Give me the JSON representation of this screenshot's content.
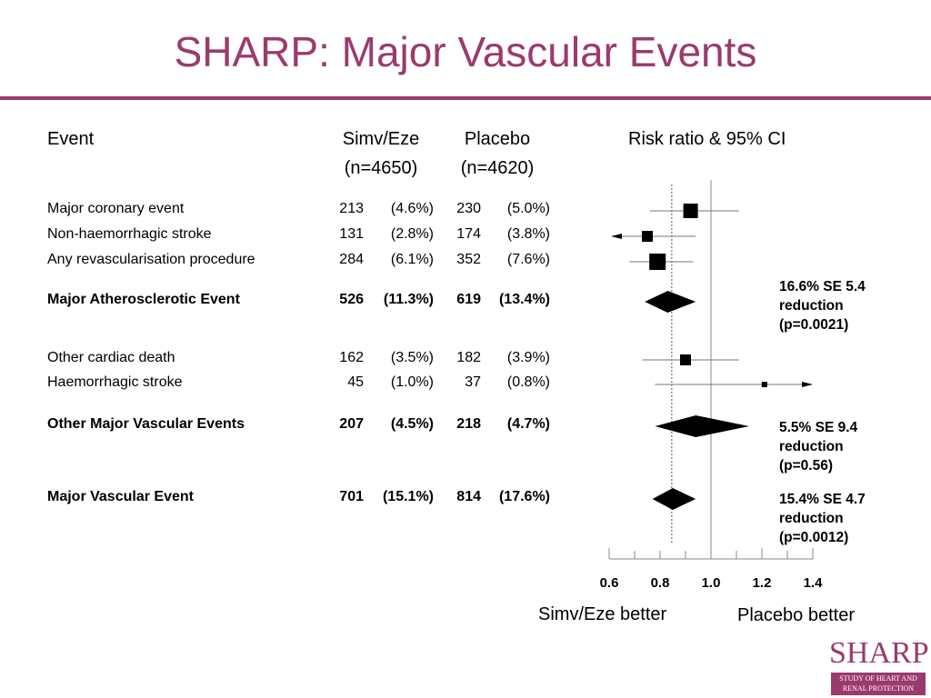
{
  "title": "SHARP: Major Vascular Events",
  "headers": {
    "event": "Event",
    "simv": "Simv/Eze",
    "simv_n": "(n=4650)",
    "placebo": "Placebo",
    "placebo_n": "(n=4620)",
    "risk": "Risk ratio & 95% CI"
  },
  "chart_data": {
    "type": "forest",
    "xlabel": "",
    "xticks": [
      "0.6",
      "0.8",
      "1.0",
      "1.2",
      "1.4"
    ],
    "xlim": [
      0.6,
      1.4
    ],
    "reference_line": 1.0,
    "overall_line": 0.846,
    "rows": [
      {
        "event": "Major coronary event",
        "bold": false,
        "simv_n": "213",
        "simv_pct": "(4.6%)",
        "pl_n": "230",
        "pl_pct": "(5.0%)",
        "shape": "square",
        "rr": 0.92,
        "lo": 0.76,
        "hi": 1.11,
        "size": 16
      },
      {
        "event": "Non-haemorrhagic stroke",
        "bold": false,
        "simv_n": "131",
        "simv_pct": "(2.8%)",
        "pl_n": "174",
        "pl_pct": "(3.8%)",
        "shape": "square",
        "rr": 0.75,
        "lo": 0.6,
        "hi": 0.94,
        "size": 12,
        "arrow_left": true
      },
      {
        "event": "Any revascularisation procedure",
        "bold": false,
        "simv_n": "284",
        "simv_pct": "(6.1%)",
        "pl_n": "352",
        "pl_pct": "(7.6%)",
        "shape": "square",
        "rr": 0.79,
        "lo": 0.68,
        "hi": 0.93,
        "size": 18
      },
      {
        "event": "Major Atherosclerotic Event",
        "bold": true,
        "simv_n": "526",
        "simv_pct": "(11.3%)",
        "pl_n": "619",
        "pl_pct": "(13.4%)",
        "shape": "diamond",
        "rr": 0.83,
        "lo": 0.74,
        "hi": 0.94
      },
      {
        "event": "Other cardiac death",
        "bold": false,
        "simv_n": "162",
        "simv_pct": "(3.5%)",
        "pl_n": "182",
        "pl_pct": "(3.9%)",
        "shape": "square",
        "rr": 0.9,
        "lo": 0.73,
        "hi": 1.11,
        "size": 12
      },
      {
        "event": "Haemorrhagic stroke",
        "bold": false,
        "simv_n": "45",
        "simv_pct": "(1.0%)",
        "pl_n": "37",
        "pl_pct": "(0.8%)",
        "shape": "square",
        "rr": 1.21,
        "lo": 0.78,
        "hi": 1.88,
        "size": 6,
        "arrow_right": true
      },
      {
        "event": "Other Major Vascular Events",
        "bold": true,
        "simv_n": "207",
        "simv_pct": "(4.5%)",
        "pl_n": "218",
        "pl_pct": "(4.7%)",
        "shape": "diamond",
        "rr": 0.94,
        "lo": 0.78,
        "hi": 1.15
      },
      {
        "event": "Major Vascular Event",
        "bold": true,
        "simv_n": "701",
        "simv_pct": "(15.1%)",
        "pl_n": "814",
        "pl_pct": "(17.6%)",
        "shape": "diamond",
        "rr": 0.85,
        "lo": 0.77,
        "hi": 0.94
      }
    ],
    "annotations": [
      {
        "line1": "16.6% SE 5.4",
        "line2": "reduction",
        "line3": "(p=0.0021)"
      },
      {
        "line1": "5.5% SE 9.4",
        "line2": "reduction",
        "line3": "(p=0.56)"
      },
      {
        "line1": "15.4% SE 4.7",
        "line2": "reduction",
        "line3": "(p=0.0012)"
      }
    ]
  },
  "footer": {
    "left": "Simv/Eze better",
    "right": "Placebo better"
  },
  "logo": {
    "word": "SHARP",
    "line1": "STUDY OF HEART AND",
    "line2": "RENAL PROTECTION"
  },
  "colors": {
    "accent": "#9b3a6e",
    "grid": "#888888"
  }
}
